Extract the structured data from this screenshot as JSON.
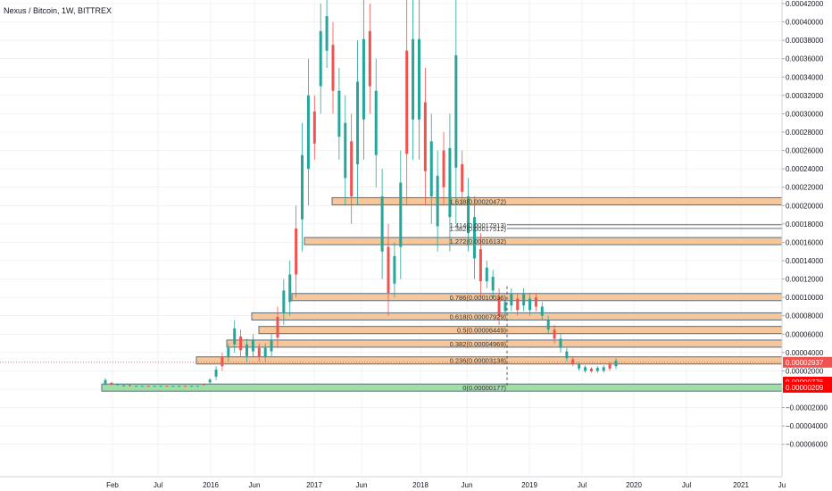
{
  "header": {
    "title": "Nexus / Bitcoin, 1W, BITTREX"
  },
  "colors": {
    "up": "#26a69a",
    "down": "#ef5350",
    "zone_fill": "#f6c79a",
    "zone_border": "#5a6f7e",
    "base_zone": "#9fdfa5",
    "price_badge": "#ef5350",
    "low_badge": "#ff0000",
    "grid": "#e6e6e6",
    "axis_text": "#131722"
  },
  "chart_data": {
    "type": "candlestick",
    "symbol": "Nexus / Bitcoin",
    "interval": "1W",
    "exchange": "BITTREX",
    "x_ticks": [
      "Feb",
      "Jul",
      "2016",
      "Jun",
      "2017",
      "Jun",
      "2018",
      "Jun",
      "2019",
      "Jul",
      "2020",
      "Jul",
      "2021",
      "Ju"
    ],
    "y_ticks": [
      "0.00042000",
      "0.00040000",
      "0.00038000",
      "0.00036000",
      "0.00034000",
      "0.00032000",
      "0.00030000",
      "0.00028000",
      "0.00026000",
      "0.00024000",
      "0.00022000",
      "0.00020000",
      "0.00018000",
      "0.00016000",
      "0.00014000",
      "0.00012000",
      "0.00010000",
      "0.00008000",
      "0.00006000",
      "0.00004000",
      "0.00002000",
      "0.00000000",
      "−0.00002000",
      "−0.00004000",
      "−0.00006000"
    ],
    "ylim": [
      -6.4e-05,
      0.000425
    ],
    "current_price_label": "0.00002937",
    "current_price": 2.937e-05,
    "extra_price_labels": [
      {
        "label": "0.00000776",
        "value": 7.76e-06
      },
      {
        "label": "0.00000209",
        "value": 2.09e-06
      }
    ],
    "fib_levels": [
      {
        "label": "1.618(0.00020472)",
        "value": 0.00020472,
        "zone": true
      },
      {
        "label": "1.414(0.00017913)",
        "value": 0.00017913,
        "zone": false
      },
      {
        "label": "1.382(0.00017512)",
        "value": 0.00017512,
        "zone": false
      },
      {
        "label": "1.272(0.00016132)",
        "value": 0.00016132,
        "zone": true
      },
      {
        "label": "0.786(0.00010036)",
        "value": 0.00010036,
        "zone": true
      },
      {
        "label": "0.618(0.00007929)",
        "value": 7.929e-05,
        "zone": true
      },
      {
        "label": "0.5(0.00006449)",
        "value": 6.449e-05,
        "zone": true
      },
      {
        "label": "0.382(0.00004969)",
        "value": 4.969e-05,
        "zone": true
      },
      {
        "label": "0.236(0.00003138)",
        "value": 3.138e-05,
        "zone": true
      },
      {
        "label": "0(0.00000177)",
        "value": 1.77e-06,
        "zone": "base"
      }
    ]
  }
}
